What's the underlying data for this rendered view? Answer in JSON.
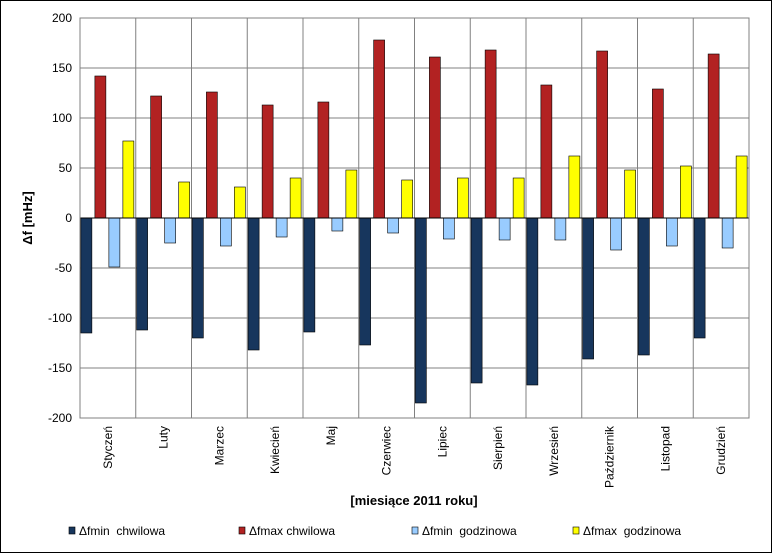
{
  "chart_data": {
    "type": "bar",
    "title": "",
    "ylabel": "Δf [mHz]",
    "xlabel": "[miesiące 2011 roku]",
    "ylim": [
      -200,
      200
    ],
    "yticks": [
      200,
      150,
      100,
      50,
      0,
      -50,
      -100,
      -150,
      -200
    ],
    "grid": true,
    "legend_position": "bottom",
    "categories": [
      "Styczeń",
      "Luty",
      "Marzec",
      "Kwiecień",
      "Maj",
      "Czerwiec",
      "Lipiec",
      "Sierpień",
      "Wrzesień",
      "Październik",
      "Listopad",
      "Grudzień"
    ],
    "series": [
      {
        "name": "Δfmin  chwilowa",
        "color": "#17365D",
        "values": [
          -115,
          -112,
          -120,
          -132,
          -114,
          -127,
          -185,
          -165,
          -167,
          -141,
          -137,
          -120
        ]
      },
      {
        "name": "Δfmax chwilowa",
        "color": "#B22222",
        "values": [
          142,
          122,
          126,
          113,
          116,
          178,
          161,
          168,
          133,
          167,
          129,
          164
        ]
      },
      {
        "name": "Δfmin  godzinowa",
        "color": "#99CCFF",
        "values": [
          -49,
          -25,
          -28,
          -19,
          -13,
          -15,
          -21,
          -22,
          -22,
          -32,
          -28,
          -30
        ]
      },
      {
        "name": "Δfmax  godzinowa",
        "color": "#FFFF00",
        "values": [
          77,
          36,
          31,
          40,
          48,
          38,
          40,
          40,
          62,
          48,
          52,
          62
        ]
      }
    ]
  }
}
